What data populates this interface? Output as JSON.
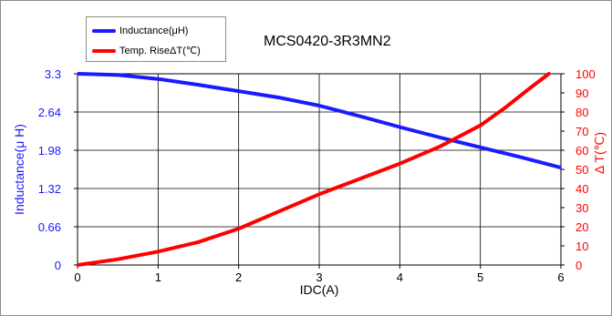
{
  "chart_data": {
    "type": "line",
    "title": "MCS0420-3R3MN2",
    "xlabel": "IDC(A)",
    "ylabel_left": "Inductance(μ H)",
    "ylabel_right": "Δ T(℃)",
    "xlim": [
      0,
      6
    ],
    "ylim_left": [
      0,
      3.3
    ],
    "ylim_right": [
      0,
      100
    ],
    "x_ticks": [
      "0",
      "1",
      "2",
      "3",
      "4",
      "5",
      "6"
    ],
    "y_left_ticks": [
      "0",
      "0.66",
      "1.32",
      "1.98",
      "2.64",
      "3.3"
    ],
    "y_right_ticks": [
      "0",
      "10",
      "20",
      "30",
      "40",
      "50",
      "60",
      "70",
      "80",
      "90",
      "100"
    ],
    "grid": true,
    "legend_position": "top-left",
    "series": [
      {
        "name": "Inductance(μH)",
        "axis": "left",
        "color": "#1a1aff",
        "x": [
          0,
          0.5,
          1,
          1.5,
          2,
          2.5,
          3,
          3.5,
          4,
          4.5,
          5,
          5.5,
          6
        ],
        "y": [
          3.3,
          3.28,
          3.21,
          3.11,
          3.0,
          2.89,
          2.75,
          2.57,
          2.38,
          2.2,
          2.03,
          1.86,
          1.68
        ]
      },
      {
        "name": "Temp. RiseΔT(℃)",
        "axis": "right",
        "color": "#ff0000",
        "x": [
          0,
          0.5,
          1,
          1.5,
          2,
          2.5,
          3,
          3.5,
          4,
          4.5,
          5,
          5.3,
          5.6,
          5.85
        ],
        "y": [
          0,
          3,
          7,
          12,
          19,
          28,
          37,
          45,
          53,
          62,
          73,
          82,
          92,
          100
        ]
      }
    ]
  }
}
